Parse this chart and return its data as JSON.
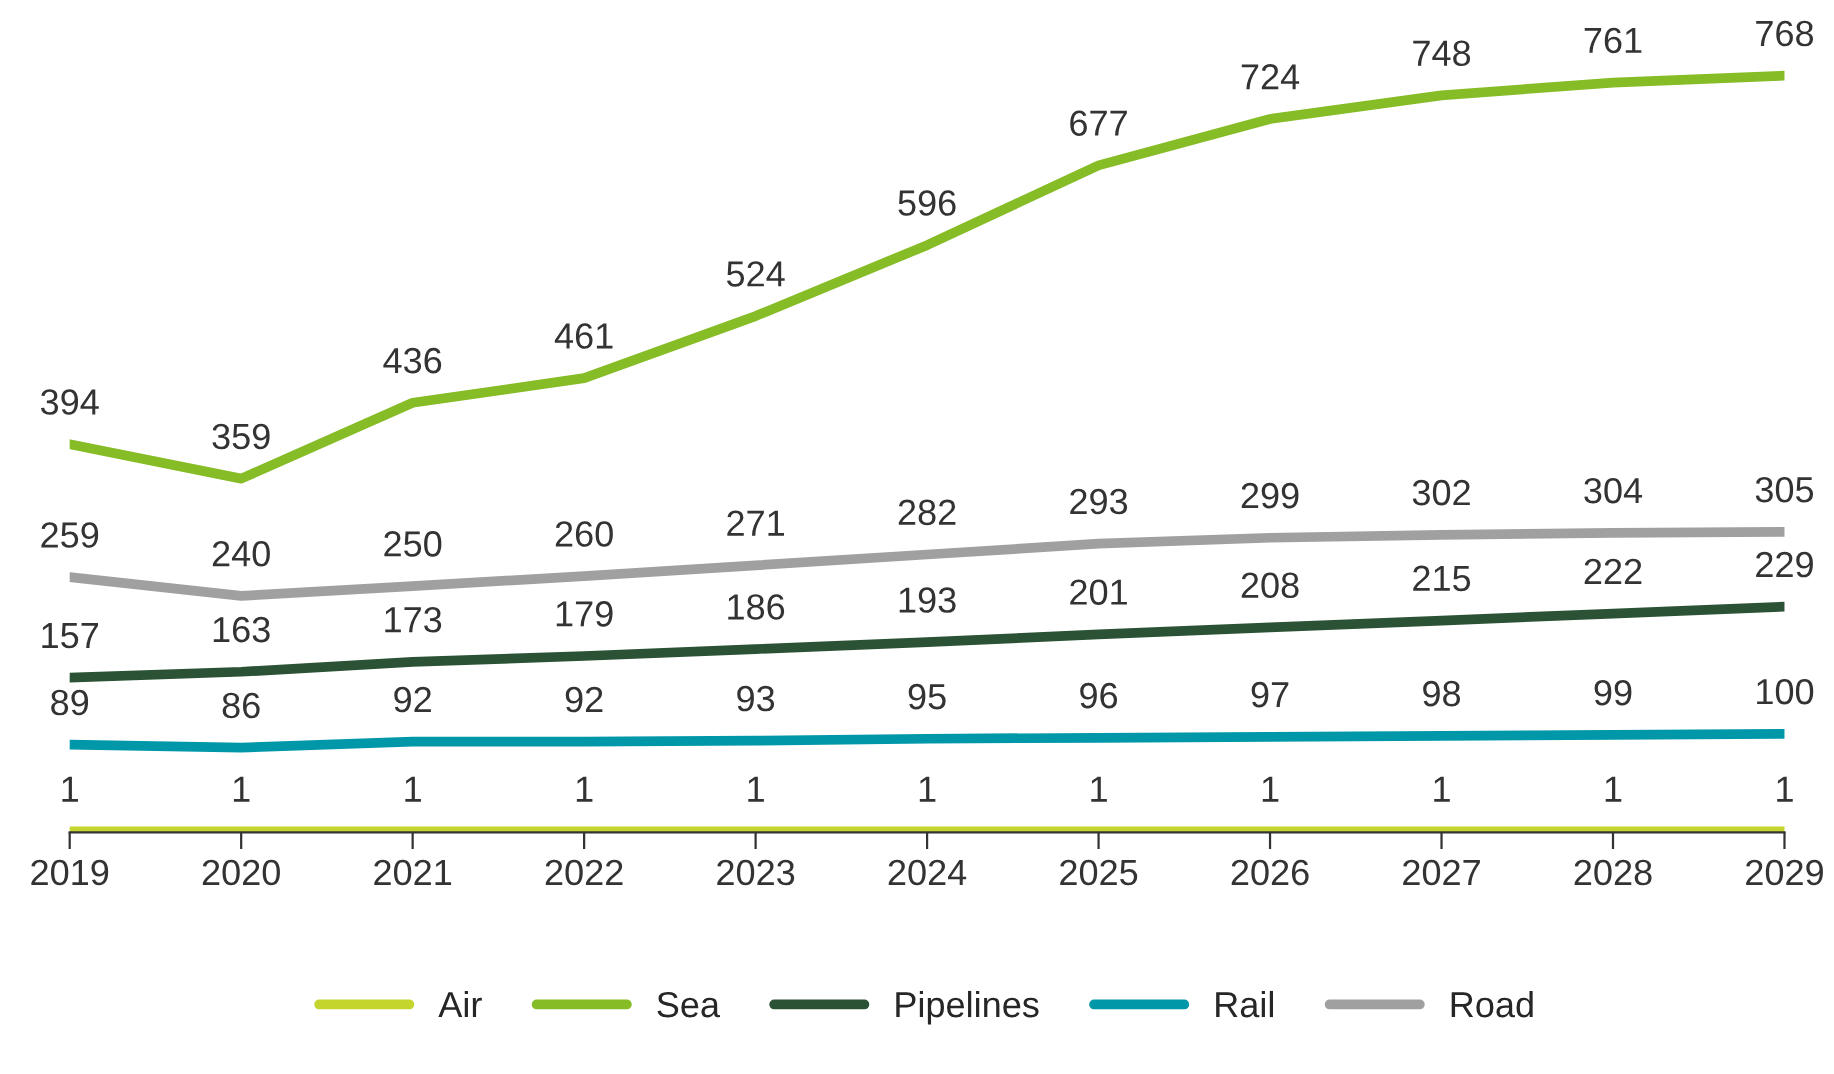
{
  "chart_data": {
    "type": "line",
    "categories": [
      "2019",
      "2020",
      "2021",
      "2022",
      "2023",
      "2024",
      "2025",
      "2026",
      "2027",
      "2028",
      "2029"
    ],
    "series": [
      {
        "name": "Air",
        "color": "#c4d62e",
        "values": [
          1,
          1,
          1,
          1,
          1,
          1,
          1,
          1,
          1,
          1,
          1
        ]
      },
      {
        "name": "Sea",
        "color": "#86bc25",
        "values": [
          394,
          359,
          436,
          461,
          524,
          596,
          677,
          724,
          748,
          761,
          768
        ]
      },
      {
        "name": "Pipelines",
        "color": "#2b5235",
        "values": [
          157,
          163,
          173,
          179,
          186,
          193,
          201,
          208,
          215,
          222,
          229
        ]
      },
      {
        "name": "Rail",
        "color": "#0097a9",
        "values": [
          89,
          86,
          92,
          92,
          93,
          95,
          96,
          97,
          98,
          99,
          100
        ]
      },
      {
        "name": "Road",
        "color": "#a0a0a0",
        "values": [
          259,
          240,
          250,
          260,
          271,
          282,
          293,
          299,
          302,
          304,
          305
        ]
      }
    ],
    "tick_labels": "x",
    "data_labels": true,
    "legend": "bottom",
    "grid": false,
    "marker": "none",
    "line_style": "solid"
  }
}
